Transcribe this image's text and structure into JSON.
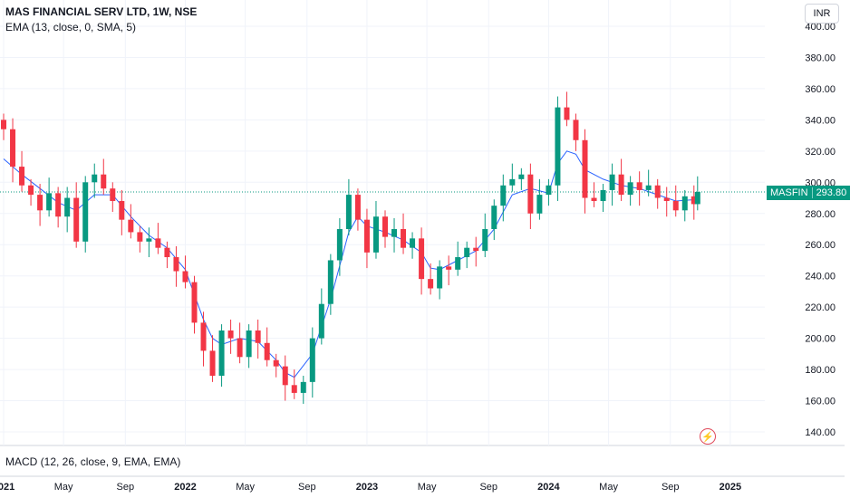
{
  "header": {
    "title": "MAS FINANCIAL SERV LTD, 1W, NSE",
    "indicator": "EMA (13, close, 0, SMA, 5)"
  },
  "currency_button": "INR",
  "last_price": {
    "symbol": "MASFIN",
    "value": "293.80"
  },
  "macd_label": "MACD (12, 26, close, 9, EMA, EMA)",
  "flash_icon": "lightning-icon",
  "colors": {
    "up": "#089981",
    "down": "#F23645",
    "ema": "#2962FF",
    "last_price_line": "#089981"
  },
  "chart_data": {
    "type": "candlestick",
    "y_ticks": [
      "400.00",
      "380.00",
      "360.00",
      "340.00",
      "320.00",
      "300.00",
      "280.00",
      "260.00",
      "240.00",
      "220.00",
      "200.00",
      "180.00",
      "160.00",
      "140.00"
    ],
    "ylim": [
      135,
      403
    ],
    "x_ticks": [
      "2021",
      "May",
      "Sep",
      "2022",
      "May",
      "Sep",
      "2023",
      "May",
      "Sep",
      "2024",
      "May",
      "Sep",
      "2025"
    ],
    "close_series": [
      [
        2021.0,
        334
      ],
      [
        2021.05,
        310
      ],
      [
        2021.1,
        298
      ],
      [
        2021.15,
        292
      ],
      [
        2021.2,
        282
      ],
      [
        2021.25,
        293
      ],
      [
        2021.3,
        278
      ],
      [
        2021.35,
        290
      ],
      [
        2021.4,
        262
      ],
      [
        2021.45,
        300
      ],
      [
        2021.5,
        305
      ],
      [
        2021.55,
        296
      ],
      [
        2021.6,
        288
      ],
      [
        2021.65,
        276
      ],
      [
        2021.7,
        268
      ],
      [
        2021.75,
        262
      ],
      [
        2021.8,
        264
      ],
      [
        2021.85,
        258
      ],
      [
        2021.9,
        252
      ],
      [
        2021.95,
        243
      ],
      [
        2022.0,
        236
      ],
      [
        2022.05,
        210
      ],
      [
        2022.1,
        192
      ],
      [
        2022.15,
        176
      ],
      [
        2022.2,
        205
      ],
      [
        2022.25,
        200
      ],
      [
        2022.3,
        188
      ],
      [
        2022.35,
        205
      ],
      [
        2022.4,
        197
      ],
      [
        2022.45,
        186
      ],
      [
        2022.5,
        182
      ],
      [
        2022.55,
        170
      ],
      [
        2022.6,
        165
      ],
      [
        2022.65,
        172
      ],
      [
        2022.7,
        200
      ],
      [
        2022.75,
        222
      ],
      [
        2022.8,
        250
      ],
      [
        2022.85,
        270
      ],
      [
        2022.9,
        292
      ],
      [
        2022.95,
        276
      ],
      [
        2023.0,
        255
      ],
      [
        2023.05,
        278
      ],
      [
        2023.1,
        265
      ],
      [
        2023.15,
        270
      ],
      [
        2023.2,
        258
      ],
      [
        2023.25,
        264
      ],
      [
        2023.3,
        238
      ],
      [
        2023.35,
        232
      ],
      [
        2023.4,
        246
      ],
      [
        2023.45,
        244
      ],
      [
        2023.5,
        252
      ],
      [
        2023.55,
        258
      ],
      [
        2023.6,
        256
      ],
      [
        2023.65,
        270
      ],
      [
        2023.7,
        285
      ],
      [
        2023.75,
        298
      ],
      [
        2023.8,
        302
      ],
      [
        2023.85,
        305
      ],
      [
        2023.9,
        280
      ],
      [
        2023.95,
        292
      ],
      [
        2024.0,
        298
      ],
      [
        2024.05,
        348
      ],
      [
        2024.1,
        340
      ],
      [
        2024.15,
        327
      ],
      [
        2024.2,
        290
      ],
      [
        2024.25,
        288
      ],
      [
        2024.3,
        295
      ],
      [
        2024.35,
        305
      ],
      [
        2024.4,
        292
      ],
      [
        2024.45,
        300
      ],
      [
        2024.5,
        295
      ],
      [
        2024.55,
        298
      ],
      [
        2024.6,
        290
      ],
      [
        2024.65,
        288
      ],
      [
        2024.7,
        282
      ],
      [
        2024.75,
        291
      ],
      [
        2024.8,
        286
      ],
      [
        2024.82,
        293.8
      ]
    ],
    "ema_series": [
      [
        2021.0,
        315
      ],
      [
        2021.1,
        305
      ],
      [
        2021.2,
        296
      ],
      [
        2021.3,
        287
      ],
      [
        2021.4,
        282
      ],
      [
        2021.5,
        292
      ],
      [
        2021.6,
        292
      ],
      [
        2021.7,
        278
      ],
      [
        2021.8,
        266
      ],
      [
        2021.9,
        258
      ],
      [
        2022.0,
        244
      ],
      [
        2022.1,
        212
      ],
      [
        2022.15,
        200
      ],
      [
        2022.2,
        196
      ],
      [
        2022.3,
        200
      ],
      [
        2022.4,
        198
      ],
      [
        2022.5,
        186
      ],
      [
        2022.55,
        178
      ],
      [
        2022.6,
        175
      ],
      [
        2022.7,
        190
      ],
      [
        2022.8,
        225
      ],
      [
        2022.9,
        268
      ],
      [
        2022.95,
        278
      ],
      [
        2023.0,
        272
      ],
      [
        2023.1,
        268
      ],
      [
        2023.2,
        263
      ],
      [
        2023.3,
        255
      ],
      [
        2023.35,
        245
      ],
      [
        2023.4,
        244
      ],
      [
        2023.5,
        250
      ],
      [
        2023.6,
        256
      ],
      [
        2023.7,
        270
      ],
      [
        2023.8,
        292
      ],
      [
        2023.9,
        296
      ],
      [
        2024.0,
        293
      ],
      [
        2024.05,
        312
      ],
      [
        2024.1,
        320
      ],
      [
        2024.15,
        318
      ],
      [
        2024.2,
        308
      ],
      [
        2024.3,
        302
      ],
      [
        2024.4,
        298
      ],
      [
        2024.5,
        296
      ],
      [
        2024.6,
        292
      ],
      [
        2024.7,
        288
      ],
      [
        2024.82,
        289
      ]
    ]
  }
}
